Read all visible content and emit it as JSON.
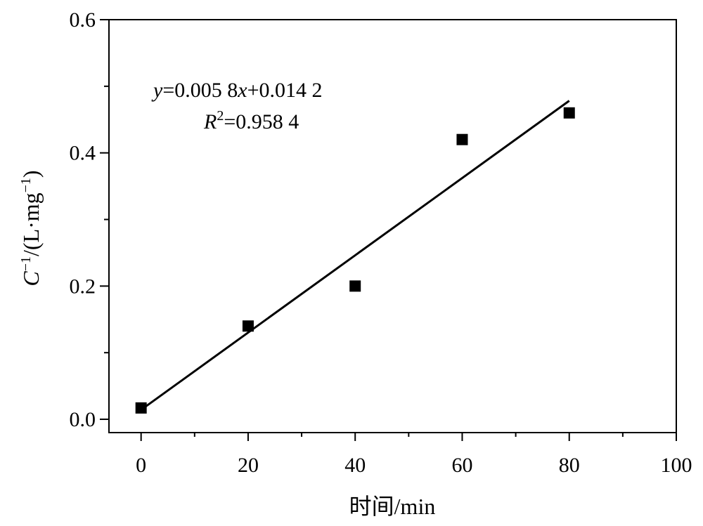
{
  "chart_data": {
    "type": "scatter",
    "x": [
      0,
      20,
      40,
      60,
      80
    ],
    "series": [
      {
        "values": [
          0.017,
          0.14,
          0.2,
          0.42,
          0.46
        ],
        "marker": "square",
        "color": "#000000"
      }
    ],
    "fit_line": {
      "slope": 0.0058,
      "intercept": 0.0142,
      "x_range": [
        0,
        80
      ]
    },
    "xlim": [
      -6,
      100
    ],
    "ylim": [
      -0.02,
      0.6
    ],
    "x_ticks": [
      0,
      20,
      40,
      60,
      80,
      100
    ],
    "x_tick_labels": [
      "0",
      "20",
      "40",
      "60",
      "80",
      "100"
    ],
    "x_minor_step": 10,
    "y_ticks": [
      0.0,
      0.2,
      0.4,
      0.6
    ],
    "y_tick_labels": [
      "0.0",
      "0.2",
      "0.4",
      "0.6"
    ],
    "y_minor_step": 0.1,
    "xlabel": "时间/min",
    "ylabel": {
      "var": "C",
      "sup": "−1",
      "mid": "/(L·mg",
      "sup2": "−1",
      "end": ")"
    },
    "annotation": {
      "line1": {
        "y": "y",
        "eq1": "=0.005 8",
        "x": "x",
        "eq2": "+0.014 2"
      },
      "line2": {
        "r": "R",
        "sup": "2",
        "eq": "=0.958 4"
      }
    },
    "grid": false,
    "legend": "none"
  }
}
